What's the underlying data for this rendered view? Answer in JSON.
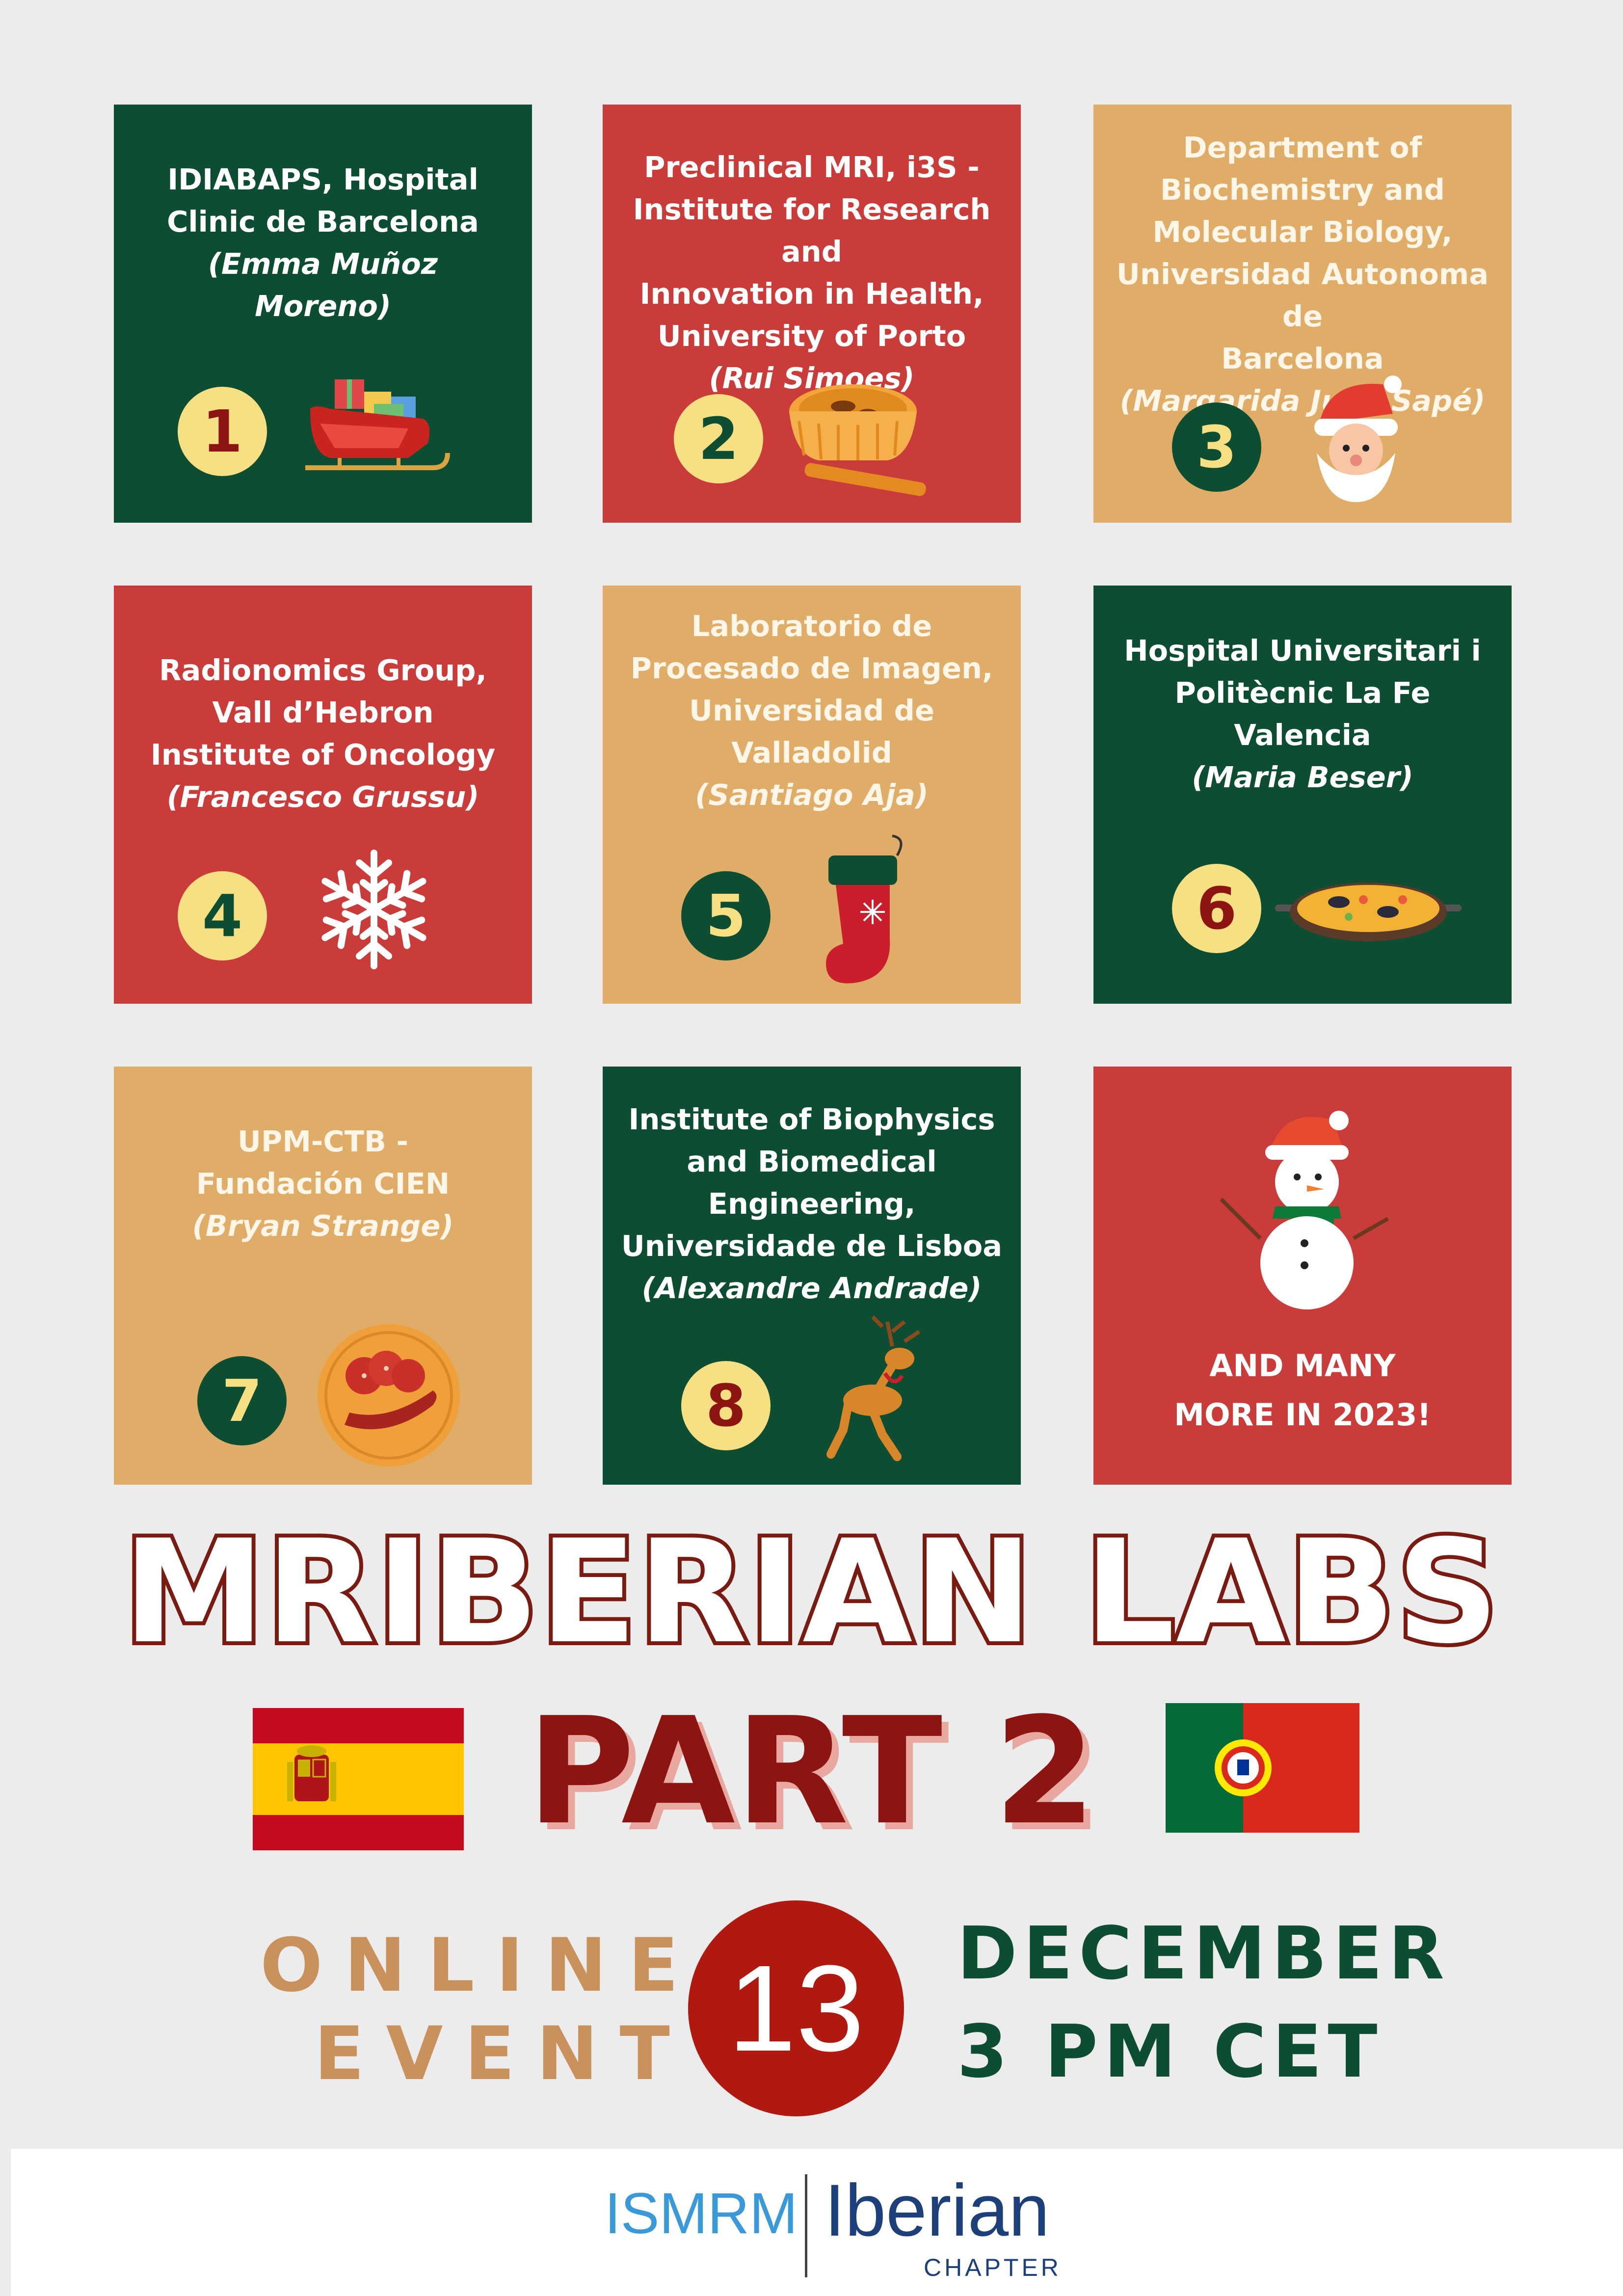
{
  "tiles": [
    {
      "lines": [
        "IDIABAPS, Hospital",
        "Clinic de Barcelona"
      ],
      "person_lines": [
        "(Emma Muñoz",
        "Moreno)"
      ],
      "number": "1",
      "icon": "sleigh-icon"
    },
    {
      "lines": [
        "Preclinical MRI, i3S -",
        "Institute for Research and",
        "Innovation in Health,",
        "University of Porto"
      ],
      "person_lines": [
        "(Rui Simoes)"
      ],
      "number": "2",
      "icon": "custard-tart-icon"
    },
    {
      "lines": [
        "Department of",
        "Biochemistry and",
        "Molecular Biology,",
        "Universidad Autonoma de",
        "Barcelona"
      ],
      "person_lines": [
        "(Margarida Julia Sapé)"
      ],
      "number": "3",
      "icon": "santa-icon"
    },
    {
      "lines": [
        "Radionomics Group,",
        "Vall d’Hebron",
        "Institute of Oncology"
      ],
      "person_lines": [
        "(Francesco Grussu)"
      ],
      "number": "4",
      "icon": "snowflake-icon"
    },
    {
      "lines": [
        "Laboratorio de",
        "Procesado de Imagen,",
        "Universidad de",
        "Valladolid"
      ],
      "person_lines": [
        "(Santiago Aja)"
      ],
      "number": "5",
      "icon": "stocking-icon"
    },
    {
      "lines": [
        "Hospital Universitari i",
        "Politècnic La Fe",
        "Valencia"
      ],
      "person_lines": [
        "(Maria Beser)"
      ],
      "number": "6",
      "icon": "paella-icon"
    },
    {
      "lines": [
        "UPM-CTB -",
        "Fundación CIEN"
      ],
      "person_lines": [
        "(Bryan Strange)"
      ],
      "number": "7",
      "icon": "chorizo-icon"
    },
    {
      "lines": [
        "Institute of Biophysics",
        "and Biomedical",
        "Engineering,",
        "Universidade de Lisboa"
      ],
      "person_lines": [
        "(Alexandre Andrade)"
      ],
      "number": "8",
      "icon": "reindeer-icon"
    },
    {
      "lines": [
        "AND MANY",
        "MORE IN 2023!"
      ],
      "person_lines": [],
      "number": "",
      "icon": "snowman-icon"
    }
  ],
  "title": {
    "main": "MRIBERIAN LABS",
    "sub": "PART 2"
  },
  "event": {
    "line1": "ONLINE",
    "line2": "EVENT"
  },
  "date": {
    "day": "13",
    "month": "DECEMBER",
    "time": "3 PM CET"
  },
  "footer": {
    "org": "ISMRM",
    "chapter_name": "Iberian",
    "chapter_label": "CHAPTER"
  },
  "colors": {
    "green": "#0d4d32",
    "red": "#c93c3a",
    "tan": "#dfad68",
    "dark_red": "#8c1512",
    "yellow": "#f7df83"
  }
}
